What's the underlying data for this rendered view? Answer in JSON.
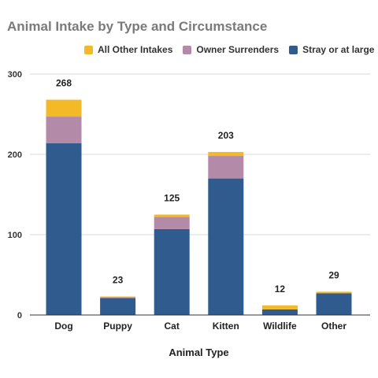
{
  "chart_data": {
    "type": "bar",
    "stacked": true,
    "title": "Animal Intake by Type and Circumstance",
    "xlabel": "Animal Type",
    "ylabel": "",
    "ylim": [
      0,
      300
    ],
    "yticks": [
      0,
      100,
      200,
      300
    ],
    "grid": true,
    "legend_position": "top",
    "categories": [
      "Dog",
      "Puppy",
      "Cat",
      "Kitten",
      "Wildlife",
      "Other"
    ],
    "totals": [
      268,
      23,
      125,
      203,
      12,
      29
    ],
    "series": [
      {
        "name": "Stray or at large",
        "color": "#2f5b8e",
        "values": [
          214,
          21,
          107,
          170,
          7,
          27
        ]
      },
      {
        "name": "Owner Surrenders",
        "color": "#b48aa9",
        "values": [
          33,
          1,
          15,
          28,
          0,
          0
        ]
      },
      {
        "name": "All Other Intakes",
        "color": "#f3b926",
        "values": [
          21,
          1,
          3,
          5,
          5,
          2
        ]
      }
    ],
    "legend_order": [
      2,
      1,
      0
    ]
  }
}
